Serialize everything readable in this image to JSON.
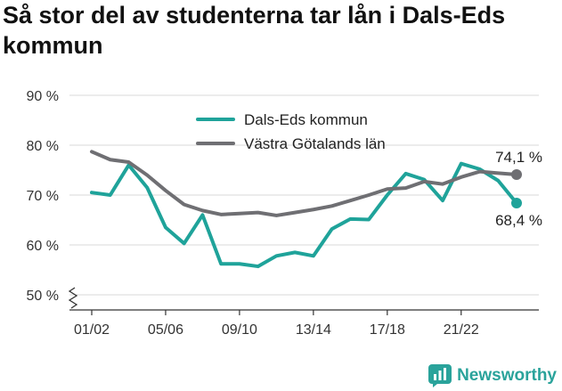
{
  "title": "Så stor del av studenterna tar lån i Dals-Eds kommun",
  "brand": {
    "name": "Newsworthy",
    "icon": "newsworthy-logo-icon",
    "color": "#2aa39b"
  },
  "chart_data": {
    "type": "line",
    "y_tick_labels": [
      "90 %",
      "80 %",
      "70 %",
      "60 %",
      "50 %"
    ],
    "y_ticks": [
      90,
      80,
      70,
      60,
      50
    ],
    "ylim": [
      50,
      90
    ],
    "y_axis_break": true,
    "x_tick_labels": [
      "01/02",
      "05/06",
      "09/10",
      "13/14",
      "17/18",
      "21/22"
    ],
    "x": [
      "01/02",
      "02/03",
      "03/04",
      "04/05",
      "05/06",
      "06/07",
      "07/08",
      "08/09",
      "09/10",
      "10/11",
      "11/12",
      "12/13",
      "13/14",
      "14/15",
      "15/16",
      "16/17",
      "17/18",
      "18/19",
      "19/20",
      "20/21",
      "21/22",
      "22/23",
      "23/24",
      "24/25"
    ],
    "grid": true,
    "legend_placement": "top-center",
    "series": [
      {
        "name": "Dals-Eds kommun",
        "color": "#1fa39a",
        "values": [
          70.5,
          70.0,
          76.0,
          71.5,
          63.5,
          60.3,
          66.0,
          56.2,
          56.2,
          55.7,
          57.8,
          58.5,
          57.8,
          63.2,
          65.2,
          65.1,
          70.0,
          74.3,
          73.1,
          68.9,
          76.3,
          75.2,
          72.9,
          68.4
        ],
        "end_label": "68,4 %"
      },
      {
        "name": "Västra Götalands län",
        "color": "#6f6f73",
        "values": [
          78.7,
          77.1,
          76.6,
          74.0,
          70.9,
          68.1,
          66.9,
          66.1,
          66.3,
          66.5,
          65.9,
          66.5,
          67.1,
          67.8,
          68.9,
          70.0,
          71.2,
          71.4,
          72.7,
          72.2,
          73.6,
          74.7,
          74.4,
          74.1
        ],
        "end_label": "74,1 %"
      }
    ]
  }
}
